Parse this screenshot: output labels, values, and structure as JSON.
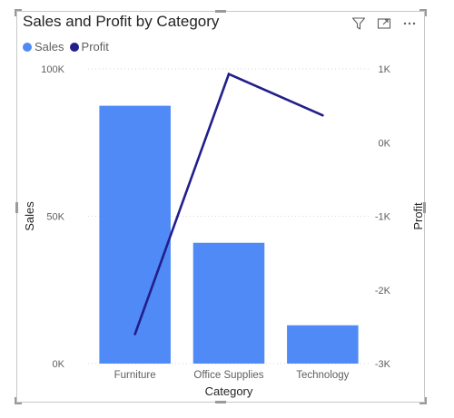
{
  "visual": {
    "title": "Sales and Profit by Category",
    "toolbar": [
      {
        "name": "filter-icon",
        "tooltip": "Filters"
      },
      {
        "name": "focus-mode-icon",
        "tooltip": "Focus mode"
      },
      {
        "name": "more-options-icon",
        "tooltip": "More options"
      }
    ]
  },
  "legend": {
    "items": [
      {
        "label": "Sales",
        "color": "#4F8AF7"
      },
      {
        "label": "Profit",
        "color": "#221E8C"
      }
    ]
  },
  "chart_data": {
    "type": "bar",
    "title": "Sales and Profit by Category",
    "categories": [
      "Furniture",
      "Office Supplies",
      "Technology"
    ],
    "xlabel": "Category",
    "ylabel": "Sales",
    "y2label": "Profit",
    "ylim": [
      0,
      100000
    ],
    "y2lim": [
      -3000,
      1000
    ],
    "yticks": [
      0,
      50000,
      100000
    ],
    "ytick_labels": [
      "0K",
      "50K",
      "100K"
    ],
    "y2ticks": [
      -3000,
      -2000,
      -1000,
      0,
      1000
    ],
    "y2tick_labels": [
      "-3K",
      "-2K",
      "-1K",
      "0K",
      "1K"
    ],
    "grid": true,
    "legend_position": "top-left",
    "series": [
      {
        "name": "Sales",
        "type": "bar",
        "axis": "left",
        "color": "#4F8AF7",
        "values": [
          87500,
          41000,
          13000
        ]
      },
      {
        "name": "Profit",
        "type": "line",
        "axis": "right",
        "color": "#221E8C",
        "values": [
          -2600,
          930,
          370
        ]
      }
    ]
  }
}
